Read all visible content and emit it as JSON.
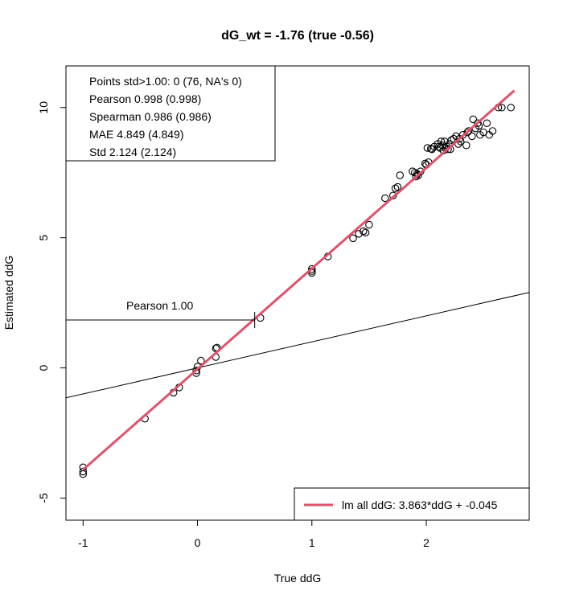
{
  "chart_data": {
    "type": "scatter",
    "title": "dG_wt = -1.76 (true -0.56)",
    "xlabel": "True ddG",
    "ylabel": "Estimated ddG",
    "xlim": [
      -1.15,
      2.9
    ],
    "ylim": [
      -5.85,
      11.6
    ],
    "xticks": [
      -1,
      0,
      1,
      2
    ],
    "yticks": [
      -5,
      0,
      5,
      10
    ],
    "xtick_labels": [
      "-1",
      "0",
      "1",
      "2"
    ],
    "ytick_labels": [
      "-5",
      "0",
      "5",
      "10"
    ],
    "grid": false,
    "stats_box": {
      "lines": [
        "Points std>1.00: 0 (76, NA's 0)",
        "Pearson 0.998 (0.998)",
        "Spearman 0.986 (0.986)",
        "MAE 4.849 (4.849)",
        "Std 2.124 (2.124)"
      ],
      "placement": "top-left"
    },
    "pearson_marker": {
      "label": "Pearson 1.00",
      "x": 0.5,
      "y": 1.84
    },
    "reference_line": {
      "slope": 1,
      "intercept": 0,
      "color": "#000000"
    },
    "fit_line": {
      "slope": 3.863,
      "intercept": -0.045,
      "x_range": [
        -1,
        2.77
      ],
      "color": "#DF536B"
    },
    "legend": {
      "placement": "bottom-right",
      "entries": [
        {
          "label": "lm all ddG: 3.863*ddG + -0.045",
          "color": "#DF536B"
        }
      ]
    },
    "points": {
      "x": [
        -1.0,
        -1.0,
        -1.0,
        -0.46,
        -0.21,
        -0.16,
        -0.01,
        -0.01,
        0.0,
        0.03,
        0.16,
        0.17,
        0.16,
        0.55,
        1.0,
        1.0,
        1.0,
        1.14,
        1.36,
        1.41,
        1.47,
        1.5,
        1.64,
        1.71,
        1.73,
        1.75,
        1.77,
        1.88,
        1.9,
        1.91,
        1.93,
        1.95,
        1.99,
        2.0,
        2.01,
        2.04,
        2.07,
        2.1,
        2.12,
        2.13,
        2.14,
        2.16,
        2.17,
        2.19,
        2.2,
        2.22,
        2.24,
        2.26,
        2.28,
        2.3,
        2.32,
        2.35,
        2.37,
        2.4,
        2.41,
        2.43,
        2.45,
        2.47,
        2.5,
        2.53,
        2.55,
        2.58,
        2.63,
        2.66,
        2.74,
        2.05,
        2.11,
        2.15,
        2.21,
        1.45,
        1.92,
        2.18,
        2.29,
        2.02,
        2.46,
        2.36
      ],
      "y": [
        -3.82,
        -3.98,
        -4.08,
        -1.95,
        -0.95,
        -0.75,
        -0.1,
        -0.2,
        0.05,
        0.28,
        0.42,
        0.78,
        0.75,
        1.92,
        3.65,
        3.72,
        3.8,
        4.28,
        4.98,
        5.15,
        5.2,
        5.5,
        6.52,
        6.62,
        6.9,
        6.95,
        7.4,
        7.55,
        7.5,
        7.35,
        7.4,
        7.55,
        7.85,
        7.8,
        8.45,
        8.42,
        8.5,
        8.6,
        8.45,
        8.7,
        8.55,
        8.7,
        8.45,
        8.4,
        8.6,
        8.75,
        8.8,
        8.9,
        8.6,
        8.7,
        8.95,
        8.55,
        9.1,
        8.9,
        9.55,
        9.2,
        9.4,
        8.95,
        9.05,
        9.4,
        8.95,
        9.1,
        10.0,
        10.0,
        10.0,
        8.4,
        8.5,
        8.35,
        8.4,
        5.25,
        7.45,
        8.5,
        8.8,
        7.9,
        9.3,
        9.05
      ]
    }
  }
}
